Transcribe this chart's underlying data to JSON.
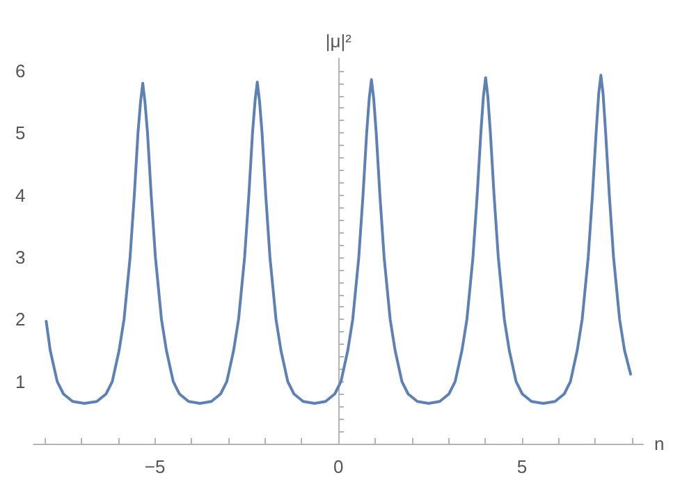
{
  "chart_data": {
    "type": "line",
    "xlabel": "n",
    "ylabel": "|μ|²",
    "xlim": [
      -8.3,
      8.3
    ],
    "ylim": [
      0,
      6.2
    ],
    "xticks": [
      {
        "value": -8,
        "label": null
      },
      {
        "value": -7,
        "label": null
      },
      {
        "value": -6,
        "label": null
      },
      -5,
      {
        "value": -4,
        "label": null
      },
      {
        "value": -3,
        "label": null
      },
      {
        "value": -2,
        "label": null
      },
      {
        "value": -1,
        "label": null
      },
      0,
      {
        "value": 1,
        "label": null
      },
      {
        "value": 2,
        "label": null
      },
      {
        "value": 3,
        "label": null
      },
      {
        "value": 4,
        "label": null
      },
      5,
      {
        "value": 6,
        "label": null
      },
      {
        "value": 7,
        "label": null
      },
      {
        "value": 8,
        "label": null
      }
    ],
    "yticks": [
      {
        "value": 0.2,
        "label": null
      },
      {
        "value": 0.4,
        "label": null
      },
      {
        "value": 0.6,
        "label": null
      },
      {
        "value": 0.8,
        "label": null
      },
      1,
      {
        "value": 1.2,
        "label": null
      },
      {
        "value": 1.4,
        "label": null
      },
      {
        "value": 1.6,
        "label": null
      },
      {
        "value": 1.8,
        "label": null
      },
      2,
      {
        "value": 2.2,
        "label": null
      },
      {
        "value": 2.4,
        "label": null
      },
      {
        "value": 2.6,
        "label": null
      },
      {
        "value": 2.8,
        "label": null
      },
      3,
      {
        "value": 3.2,
        "label": null
      },
      {
        "value": 3.4,
        "label": null
      },
      {
        "value": 3.6,
        "label": null
      },
      {
        "value": 3.8,
        "label": null
      },
      4,
      {
        "value": 4.2,
        "label": null
      },
      {
        "value": 4.4,
        "label": null
      },
      {
        "value": 4.6,
        "label": null
      },
      {
        "value": 4.8,
        "label": null
      },
      5,
      {
        "value": 5.2,
        "label": null
      },
      {
        "value": 5.4,
        "label": null
      },
      {
        "value": 5.6,
        "label": null
      },
      {
        "value": 5.8,
        "label": null
      },
      6
    ],
    "series": [
      {
        "color": "#5e81b5",
        "x": [
          -7.96,
          -7.85,
          -7.66,
          -7.49,
          -7.24,
          -6.92,
          -6.58,
          -6.33,
          -6.16,
          -5.975,
          -5.84,
          -5.675,
          -5.56,
          -5.46,
          -5.39,
          -5.33,
          -5.27,
          -5.2,
          -5.1,
          -4.985,
          -4.82,
          -4.685,
          -4.5,
          -4.33,
          -4.08,
          -3.77,
          -3.46,
          -3.21,
          -3.04,
          -2.855,
          -2.72,
          -2.555,
          -2.44,
          -2.34,
          -2.27,
          -2.21,
          -2.15,
          -2.08,
          -1.98,
          -1.865,
          -1.7,
          -1.565,
          -1.38,
          -1.21,
          -0.96,
          -0.65,
          -0.35,
          -0.1,
          0.07,
          0.255,
          0.39,
          0.555,
          0.67,
          0.77,
          0.84,
          0.9,
          0.96,
          1.03,
          1.13,
          1.245,
          1.41,
          1.545,
          1.73,
          1.9,
          2.15,
          2.46,
          2.76,
          3.01,
          3.18,
          3.365,
          3.5,
          3.665,
          3.78,
          3.88,
          3.95,
          4.01,
          4.07,
          4.14,
          4.24,
          4.355,
          4.52,
          4.655,
          4.84,
          5.01,
          5.26,
          5.58,
          5.9,
          6.15,
          6.32,
          6.505,
          6.64,
          6.805,
          6.92,
          7.02,
          7.09,
          7.15,
          7.21,
          7.28,
          7.38,
          7.495,
          7.66,
          7.795,
          7.96
        ],
        "values": [
          1.97,
          1.5,
          1.0,
          0.8,
          0.68,
          0.65,
          0.68,
          0.8,
          1.0,
          1.5,
          2.0,
          3.0,
          4.0,
          5.0,
          5.5,
          5.8,
          5.5,
          5.0,
          4.0,
          3.0,
          2.0,
          1.5,
          1.0,
          0.8,
          0.68,
          0.65,
          0.68,
          0.8,
          1.0,
          1.5,
          2.0,
          3.0,
          4.0,
          5.0,
          5.52,
          5.82,
          5.52,
          5.0,
          4.0,
          3.0,
          2.0,
          1.5,
          1.0,
          0.8,
          0.68,
          0.65,
          0.68,
          0.8,
          1.0,
          1.5,
          2.0,
          3.0,
          4.0,
          5.0,
          5.56,
          5.86,
          5.56,
          5.0,
          4.0,
          3.0,
          2.0,
          1.5,
          1.0,
          0.8,
          0.68,
          0.65,
          0.68,
          0.8,
          1.0,
          1.5,
          2.0,
          3.0,
          4.0,
          5.0,
          5.59,
          5.89,
          5.59,
          5.0,
          4.0,
          3.0,
          2.0,
          1.5,
          1.0,
          0.8,
          0.68,
          0.65,
          0.68,
          0.8,
          1.0,
          1.5,
          2.0,
          3.0,
          4.0,
          5.0,
          5.63,
          5.93,
          5.63,
          5.0,
          4.0,
          3.0,
          2.0,
          1.5,
          1.12
        ]
      }
    ]
  }
}
